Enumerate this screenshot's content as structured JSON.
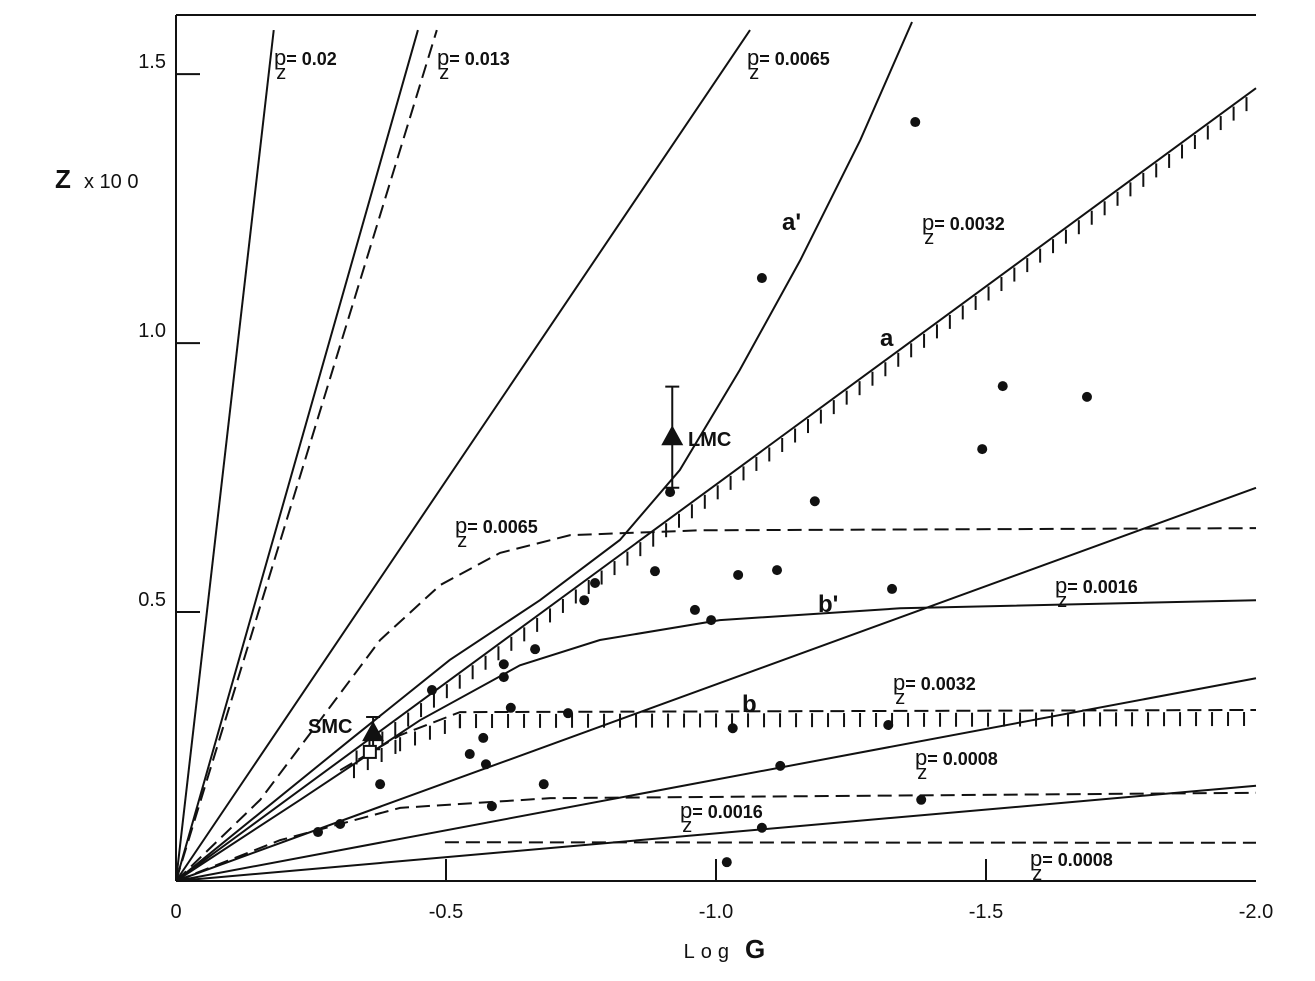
{
  "chart_data": {
    "type": "line",
    "xlabel": "Log",
    "xlabel_bold": "G",
    "ylabel_bold": "Z",
    "ylabel": "x 10 0",
    "xlim": [
      0,
      -2.0
    ],
    "ylim": [
      0,
      1.61
    ],
    "xticks": [
      0,
      -0.5,
      {
        "value": -1,
        "label": "-1.0"
      },
      -1.5,
      {
        "value": -2,
        "label": "-2.0"
      }
    ],
    "yticks": [
      0.5,
      {
        "value": 1,
        "label": "1.0"
      },
      1.5
    ],
    "series": [
      {
        "mark": "line",
        "color": "#111",
        "dash": false,
        "hatch": false,
        "x": [
          0,
          -0.181
        ],
        "values": [
          0,
          1.582
        ]
      },
      {
        "mark": "line",
        "color": "#111",
        "dash": false,
        "hatch": false,
        "x": [
          0,
          -0.448
        ],
        "values": [
          0,
          1.582
        ]
      },
      {
        "mark": "line",
        "color": "#111",
        "dash": true,
        "hatch": false,
        "x": [
          0,
          -0.483
        ],
        "values": [
          0,
          1.582
        ]
      },
      {
        "mark": "line",
        "color": "#111",
        "dash": false,
        "hatch": false,
        "x": [
          0,
          -1.063
        ],
        "values": [
          0,
          1.582
        ]
      },
      {
        "mark": "line",
        "color": "#111",
        "dash": false,
        "hatch": false,
        "x": [
          0,
          -0.322,
          -0.507,
          -0.674,
          -0.822,
          -0.933,
          -1.044,
          -1.156,
          -1.267,
          -1.363
        ],
        "values": [
          0,
          0.262,
          0.411,
          0.522,
          0.634,
          0.764,
          0.95,
          1.154,
          1.377,
          1.597
        ]
      },
      {
        "mark": "line",
        "color": "#111",
        "dash": false,
        "hatch": true,
        "x": [
          0,
          -2.0
        ],
        "values": [
          0,
          1.474
        ]
      },
      {
        "mark": "line",
        "color": "#111",
        "dash": false,
        "hatch": false,
        "x": [
          0,
          -2.0
        ],
        "values": [
          0,
          0.731
        ]
      },
      {
        "mark": "line",
        "color": "#111",
        "dash": false,
        "hatch": false,
        "x": [
          0,
          -0.23,
          -0.452,
          -0.637,
          -0.785,
          -1.007,
          -1.341,
          -2.0
        ],
        "values": [
          0,
          0.151,
          0.299,
          0.401,
          0.448,
          0.485,
          0.507,
          0.522
        ]
      },
      {
        "mark": "line",
        "color": "#111",
        "dash": false,
        "hatch": false,
        "x": [
          0,
          -2.0
        ],
        "values": [
          0,
          0.377
        ]
      },
      {
        "mark": "line",
        "color": "#111",
        "dash": false,
        "hatch": false,
        "x": [
          0,
          -2.0
        ],
        "values": [
          0,
          0.177
        ]
      },
      {
        "mark": "line",
        "color": "#111",
        "dash": true,
        "hatch": false,
        "x": [
          0,
          -0.156,
          -0.267,
          -0.378,
          -0.489,
          -0.6,
          -0.73,
          -0.97,
          -2.0
        ],
        "values": [
          0,
          0.151,
          0.299,
          0.448,
          0.55,
          0.61,
          0.643,
          0.652,
          0.656
        ]
      },
      {
        "mark": "line",
        "color": "#111",
        "dash": true,
        "hatch": true,
        "x": [
          -0.304,
          -0.415,
          -0.526,
          -2.0
        ],
        "values": [
          0.206,
          0.271,
          0.314,
          0.318
        ]
      },
      {
        "mark": "line",
        "color": "#111",
        "dash": true,
        "hatch": false,
        "x": [
          0,
          -0.193,
          -0.415,
          -0.693,
          -2.0
        ],
        "values": [
          0,
          0.076,
          0.136,
          0.154,
          0.164
        ]
      },
      {
        "mark": "line",
        "color": "#111",
        "dash": true,
        "hatch": false,
        "x": [
          -0.498,
          -2.0
        ],
        "values": [
          0.072,
          0.071
        ]
      },
      {
        "mark": "dot",
        "color": "#111",
        "x": [
          -1.369,
          -1.085,
          -1.531,
          -1.687,
          -1.493,
          -0.915,
          -1.183,
          -0.887,
          -1.041,
          -1.113,
          -0.776,
          -0.756,
          -1.326,
          -0.961,
          -0.991,
          -0.665,
          -0.607,
          -0.607,
          -0.474,
          -0.62,
          -0.726,
          -1.031,
          -1.319,
          -0.569,
          -0.544,
          -0.574,
          -1.119,
          -0.378,
          -0.681,
          -0.585,
          -1.38,
          -0.304,
          -0.263,
          -1.085,
          -1.02
        ],
        "values": [
          1.411,
          1.121,
          0.92,
          0.9,
          0.803,
          0.723,
          0.706,
          0.576,
          0.569,
          0.578,
          0.554,
          0.522,
          0.543,
          0.504,
          0.485,
          0.431,
          0.403,
          0.379,
          0.355,
          0.322,
          0.312,
          0.284,
          0.29,
          0.266,
          0.236,
          0.217,
          0.214,
          0.18,
          0.18,
          0.139,
          0.151,
          0.106,
          0.091,
          0.099,
          0.035
        ]
      },
      {
        "mark": "triangle",
        "color": "#111",
        "x": [
          -0.919,
          -0.365
        ],
        "values": [
          0.825,
          0.275
        ],
        "errors": [
          0.094,
          0.03
        ]
      },
      {
        "mark": "square",
        "color": "#111",
        "x": [
          -0.359
        ],
        "values": [
          0.24
        ]
      }
    ],
    "annotations": [
      {
        "p": "p",
        "sub": "z",
        "text": "= 0.02"
      },
      {
        "p": "p",
        "sub": "z",
        "text": "= 0.013"
      },
      {
        "p": "p",
        "sub": "z",
        "text": "= 0.0065"
      },
      {
        "p": "p",
        "sub": "z",
        "text": "= 0.0032"
      },
      {
        "p": "p",
        "sub": "z",
        "text": "= 0.0065"
      },
      {
        "p": "p",
        "sub": "z",
        "text": "= 0.0016"
      },
      {
        "p": "p",
        "sub": "z",
        "text": "= 0.0032"
      },
      {
        "p": "p",
        "sub": "z",
        "text": "= 0.0008"
      },
      {
        "p": "p",
        "sub": "z",
        "text": "= 0.0016"
      },
      {
        "p": "p",
        "sub": "z",
        "text": "= 0.0008"
      }
    ],
    "labels": [
      "a'",
      "a",
      "b'",
      "b",
      "LMC",
      "SMC"
    ]
  }
}
